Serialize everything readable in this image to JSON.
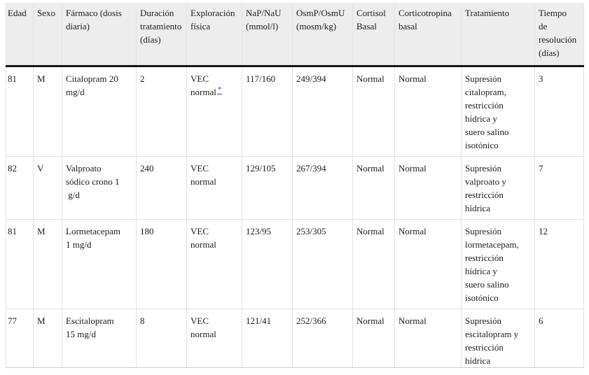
{
  "table": {
    "columns": [
      {
        "key": "edad",
        "label": "Edad"
      },
      {
        "key": "sexo",
        "label": "Sexo"
      },
      {
        "key": "farmaco",
        "label": "Fármaco (dosis\ndiaria)"
      },
      {
        "key": "duracion-tratamiento",
        "label": "Duración\ntratamiento\n(días)"
      },
      {
        "key": "exploracion-fisica",
        "label": "Exploración\nfísica"
      },
      {
        "key": "nap-nau",
        "label": "NaP/NaU\n(mmol/l)"
      },
      {
        "key": "osmp-osmu",
        "label": "OsmP/OsmU\n(mosm/kg)"
      },
      {
        "key": "cortisol-basal",
        "label": "Cortisol\nBasal"
      },
      {
        "key": "corticotropina-basal",
        "label": "Corticotropina\nbasal"
      },
      {
        "key": "tratamiento",
        "label": "Tratamiento"
      },
      {
        "key": "tiempo-resolucion",
        "label": "Tiempo\nde\nresolución\n(días)"
      }
    ],
    "rows": [
      {
        "cells": [
          "81",
          "M",
          "Citalopram 20\nmg/d",
          "2",
          "VEC\nnormal",
          "117/160",
          "249/394",
          "Normal",
          "Normal",
          "Supresión\ncitalopram,\nrestricción\nhídrica y\nsuero salino\nisotónico",
          "3"
        ]
      },
      {
        "cells": [
          "82",
          "V",
          "Valproato\nsódico crono 1\n g/d",
          "240",
          "VEC\nnormal",
          "129/105",
          "267/394",
          "Normal",
          "Normal",
          "Supresión\nvalproato y\nrestricción\nhídrica",
          "7"
        ]
      },
      {
        "cells": [
          "81",
          "M",
          "Lormetacepam\n1 mg/d",
          "180",
          "VEC\nnormal",
          "123/95",
          "253/305",
          "Normal",
          "Normal",
          "Supresión\nlormetacepam,\nrestricción\nhídrica y\nsuero salino\nisotónico",
          "12"
        ]
      },
      {
        "cells": [
          "77",
          "M",
          "Escitalopram\n15 mg/d",
          "8",
          "VEC\nnormal",
          "121/41",
          "252/366",
          "Normal",
          "Normal",
          "Supresión\nescitalopram y\nrestricción\nhídrica",
          "6"
        ]
      }
    ],
    "footnote": {
      "row": 0,
      "col": 4,
      "marker": "*"
    }
  },
  "colors": {
    "header_bg": "#ededed",
    "heavy_rule": "#161616",
    "grid_line": "#e2e2e2",
    "text": "#1c1c1c",
    "footnote_link": "#3340c8"
  }
}
